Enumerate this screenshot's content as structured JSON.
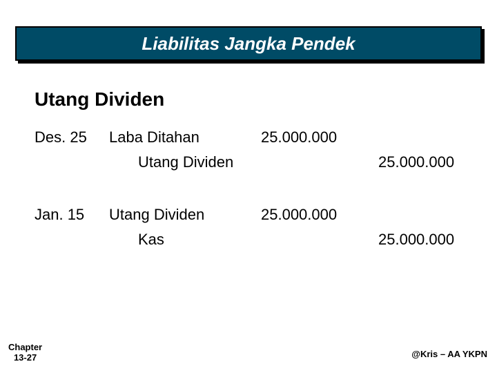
{
  "title": "Liabilitas Jangka Pendek",
  "subtitle": "Utang Dividen",
  "colors": {
    "title_bg": "#004b66",
    "title_border": "#000000",
    "title_text": "#ffffff",
    "body_text": "#000000",
    "page_bg": "#ffffff"
  },
  "typography": {
    "title_fontsize_pt": 20,
    "subtitle_fontsize_pt": 21,
    "body_fontsize_pt": 17,
    "footer_fontsize_pt": 10,
    "title_font": "Comic Sans MS",
    "body_font": "Comic Sans MS",
    "footer_font": "Arial"
  },
  "entries": [
    {
      "date": "Des. 25",
      "lines": [
        {
          "account": "Laba Ditahan",
          "debit": "25.000.000",
          "credit": ""
        },
        {
          "account": "Utang Dividen",
          "debit": "",
          "credit": "25.000.000",
          "indent": true
        }
      ]
    },
    {
      "date": "Jan. 15",
      "lines": [
        {
          "account": "Utang Dividen",
          "debit": "25.000.000",
          "credit": ""
        },
        {
          "account": "Kas",
          "debit": "",
          "credit": "25.000.000",
          "indent": true
        }
      ]
    }
  ],
  "footer": {
    "left_line1": "Chapter",
    "left_line2": "13-27",
    "right": "@Kris – AA YKPN"
  }
}
